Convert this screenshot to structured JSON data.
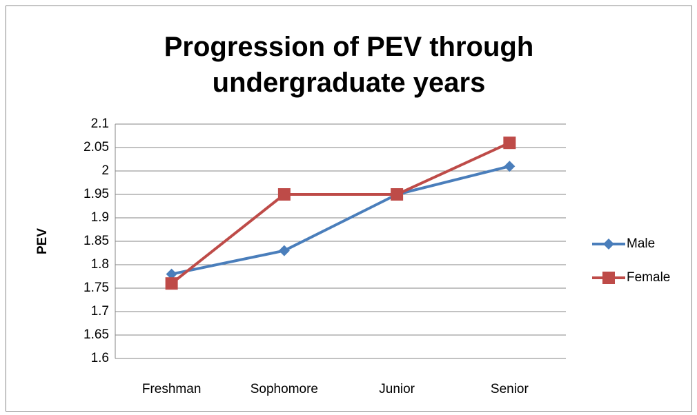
{
  "chart_data": {
    "type": "line",
    "title": "Progression of PEV through undergraduate years",
    "y_label": "PEV",
    "categories": [
      "Freshman",
      "Sophomore",
      "Junior",
      "Senior"
    ],
    "series": [
      {
        "name": "Male",
        "color": "#4a7ebb",
        "marker": "diamond",
        "values": [
          1.78,
          1.83,
          1.95,
          2.01
        ]
      },
      {
        "name": "Female",
        "color": "#be4b48",
        "marker": "square",
        "values": [
          1.76,
          1.95,
          1.95,
          2.06
        ]
      }
    ],
    "ylim": [
      1.6,
      2.1
    ],
    "yticks": [
      1.6,
      1.65,
      1.7,
      1.75,
      1.8,
      1.85,
      1.9,
      1.95,
      2,
      2.05,
      2.1
    ],
    "grid": true,
    "legend": "right"
  }
}
